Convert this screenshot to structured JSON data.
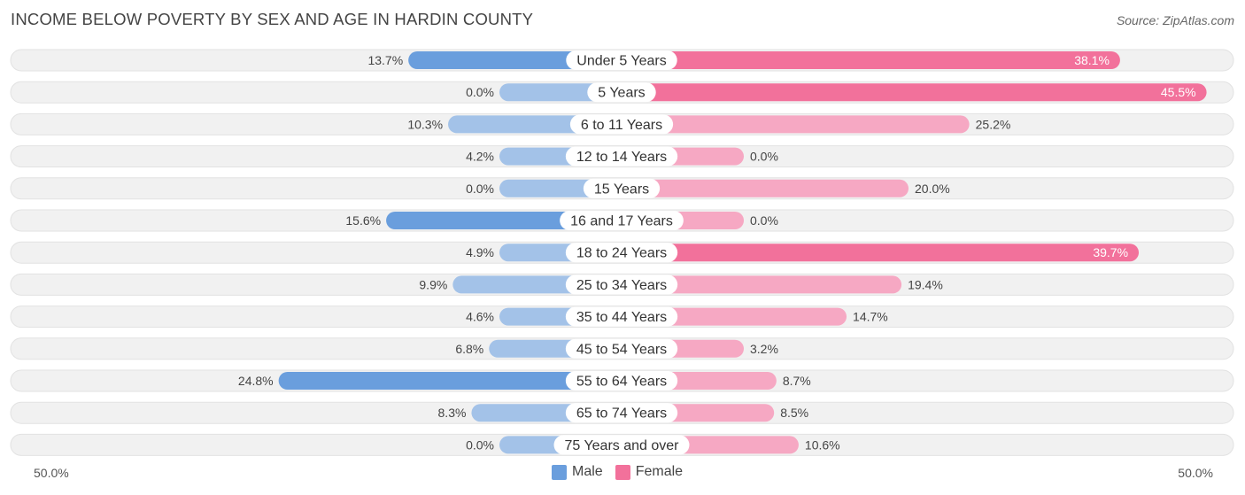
{
  "header": {
    "title": "INCOME BELOW POVERTY BY SEX AND AGE IN HARDIN COUNTY",
    "source": "Source: ZipAtlas.com"
  },
  "colors": {
    "male_strong": "#6a9edd",
    "male_light": "#a3c2e8",
    "female_strong": "#f2719b",
    "female_light": "#f6a8c3",
    "row_bg": "#f1f1f1"
  },
  "chart_data": {
    "type": "bar",
    "orientation": "horizontal-diverging",
    "title": "INCOME BELOW POVERTY BY SEX AND AGE IN HARDIN COUNTY",
    "categories": [
      "Under 5 Years",
      "5 Years",
      "6 to 11 Years",
      "12 to 14 Years",
      "15 Years",
      "16 and 17 Years",
      "18 to 24 Years",
      "25 to 34 Years",
      "35 to 44 Years",
      "45 to 54 Years",
      "55 to 64 Years",
      "65 to 74 Years",
      "75 Years and over"
    ],
    "series": [
      {
        "name": "Male",
        "values": [
          13.7,
          0.0,
          10.3,
          4.2,
          0.0,
          15.6,
          4.9,
          9.9,
          4.6,
          6.8,
          24.8,
          8.3,
          0.0
        ],
        "labels": [
          "13.7%",
          "0.0%",
          "10.3%",
          "4.2%",
          "0.0%",
          "15.6%",
          "4.9%",
          "9.9%",
          "4.6%",
          "6.8%",
          "24.8%",
          "8.3%",
          "0.0%"
        ]
      },
      {
        "name": "Female",
        "values": [
          38.1,
          45.5,
          25.2,
          0.0,
          20.0,
          0.0,
          39.7,
          19.4,
          14.7,
          3.2,
          8.7,
          8.5,
          10.6
        ],
        "labels": [
          "38.1%",
          "45.5%",
          "25.2%",
          "0.0%",
          "20.0%",
          "0.0%",
          "39.7%",
          "19.4%",
          "14.7%",
          "3.2%",
          "8.7%",
          "8.5%",
          "10.6%"
        ]
      }
    ],
    "xlim": [
      -50,
      50
    ],
    "axis_labels": {
      "left": "50.0%",
      "right": "50.0%"
    },
    "legend": {
      "placement": "bottom-center",
      "items": [
        "Male",
        "Female"
      ]
    }
  }
}
